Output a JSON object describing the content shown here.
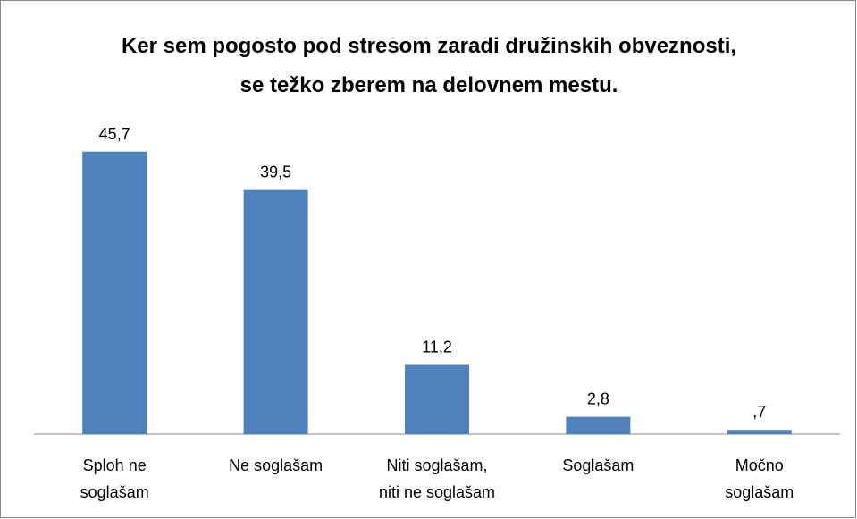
{
  "chart_data": {
    "type": "bar",
    "title": "Ker sem pogosto pod stresom zaradi družinskih obveznosti, se težko zberem na delovnem mestu.",
    "categories": [
      "Sploh ne\nsoglašam",
      "Ne soglašam",
      "Niti soglašam,\nniti ne soglašam",
      "Soglašam",
      "Močno\nsoglašam"
    ],
    "values": [
      45.7,
      39.5,
      11.2,
      2.8,
      0.7
    ],
    "value_labels": [
      "45,7",
      "39,5",
      "11,2",
      "2,8",
      ",7"
    ],
    "color": "#4f81bd",
    "ylim": [
      0,
      50
    ]
  }
}
